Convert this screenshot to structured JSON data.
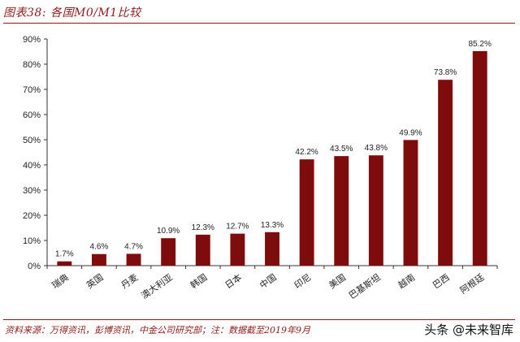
{
  "header": {
    "title": "图表38: 各国M0/M1比较"
  },
  "footer": {
    "source": "资料来源：万得资讯，彭博资讯，中金公司研究部；注：数据截至2019年9月",
    "watermark": "头条 @未来智库"
  },
  "chart_data": {
    "type": "bar",
    "categories": [
      "瑞典",
      "英国",
      "丹麦",
      "澳大利亚",
      "韩国",
      "日本",
      "中国",
      "印尼",
      "美国",
      "巴基斯坦",
      "越南",
      "巴西",
      "阿根廷"
    ],
    "values": [
      1.7,
      4.6,
      4.7,
      10.9,
      12.3,
      12.7,
      13.3,
      42.2,
      43.5,
      43.8,
      49.9,
      73.8,
      85.2
    ],
    "data_labels": [
      "1.7%",
      "4.6%",
      "4.7%",
      "10.9%",
      "12.3%",
      "12.7%",
      "13.3%",
      "42.2%",
      "43.5%",
      "43.8%",
      "49.9%",
      "73.8%",
      "85.2%"
    ],
    "title": "图表38: 各国M0/M1比较",
    "xlabel": "",
    "ylabel": "",
    "ylim": [
      0,
      90
    ],
    "yticks": [
      0,
      10,
      20,
      30,
      40,
      50,
      60,
      70,
      80,
      90
    ],
    "ytick_labels": [
      "0%",
      "10%",
      "20%",
      "30%",
      "40%",
      "50%",
      "60%",
      "70%",
      "80%",
      "90%"
    ],
    "grid": false,
    "legend": "none",
    "bar_color": "#7f0c0c"
  }
}
